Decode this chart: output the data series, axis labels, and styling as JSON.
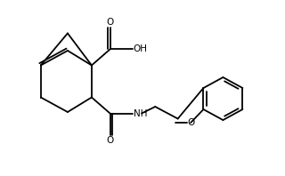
{
  "bg_color": "#ffffff",
  "line_color": "#000000",
  "lw": 1.3,
  "fs": 7.5,
  "xlim": [
    0,
    10
  ],
  "ylim": [
    0,
    6.5
  ]
}
